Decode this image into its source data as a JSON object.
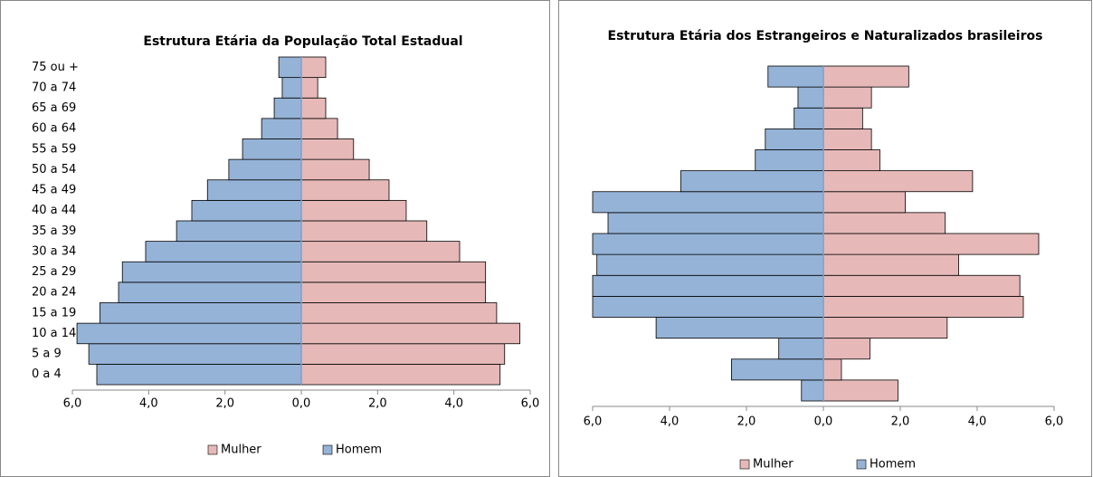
{
  "chart_data": [
    {
      "type": "pyramid",
      "title": "Estrutura Etária da População Total Estadual",
      "categories": [
        "0 a 4",
        "5 a 9",
        "10 a 14",
        "15 a 19",
        "20 a 24",
        "25 a 29",
        "30 a 34",
        "35 a 39",
        "40 a 44",
        "45 a 49",
        "50 a 54",
        "55 a 59",
        "60 a 64",
        "65 a 69",
        "70 a 74",
        "75 ou +"
      ],
      "series": [
        {
          "name": "Mulher",
          "color": "#e6b9b8",
          "values": [
            5.21,
            5.33,
            5.73,
            5.12,
            4.83,
            4.83,
            4.15,
            3.29,
            2.75,
            2.3,
            1.78,
            1.37,
            0.95,
            0.64,
            0.43,
            0.64
          ]
        },
        {
          "name": "Homem",
          "color": "#95b3d7",
          "values": [
            -5.36,
            -5.57,
            -5.88,
            -5.28,
            -4.79,
            -4.69,
            -4.08,
            -3.27,
            -2.87,
            -2.46,
            -1.9,
            -1.54,
            -1.04,
            -0.71,
            -0.5,
            -0.59
          ]
        }
      ],
      "xlim": [
        -6,
        6
      ],
      "xticks": [
        {
          "value": -6,
          "label": "6,0"
        },
        {
          "value": -4,
          "label": "4,0"
        },
        {
          "value": -2,
          "label": "2,0"
        },
        {
          "value": 0,
          "label": "0,0"
        },
        {
          "value": 2,
          "label": "2,0"
        },
        {
          "value": 4,
          "label": "4,0"
        },
        {
          "value": 6,
          "label": "6,0"
        }
      ],
      "legend": "bottom"
    },
    {
      "type": "pyramid",
      "title": "Estrutura Etária dos Estrangeiros e Naturalizados brasileiros",
      "categories": [
        null,
        null,
        null,
        null,
        null,
        null,
        null,
        null,
        null,
        null,
        null,
        null,
        null,
        null,
        null,
        null
      ],
      "series": [
        {
          "name": "Mulher",
          "color": "#e6b9b8",
          "values": [
            1.94,
            0.47,
            1.21,
            3.22,
            5.2,
            5.11,
            3.52,
            5.6,
            3.17,
            2.13,
            3.88,
            1.47,
            1.25,
            1.02,
            1.25,
            2.22
          ]
        },
        {
          "name": "Homem",
          "color": "#95b3d7",
          "values": [
            -0.57,
            -2.39,
            -1.16,
            -4.35,
            -6,
            -6,
            -5.89,
            -6,
            -5.6,
            -6,
            -3.71,
            -1.77,
            -1.51,
            -0.76,
            -0.66,
            -1.44
          ]
        }
      ],
      "xlim": [
        -6,
        6
      ],
      "xticks": [
        {
          "value": -6,
          "label": "6,0"
        },
        {
          "value": -4,
          "label": "4,0"
        },
        {
          "value": -2,
          "label": "2,0"
        },
        {
          "value": 0,
          "label": "0,0"
        },
        {
          "value": 2,
          "label": "2,0"
        },
        {
          "value": 4,
          "label": "4,0"
        },
        {
          "value": 6,
          "label": "6,0"
        }
      ],
      "legend": "bottom"
    }
  ]
}
